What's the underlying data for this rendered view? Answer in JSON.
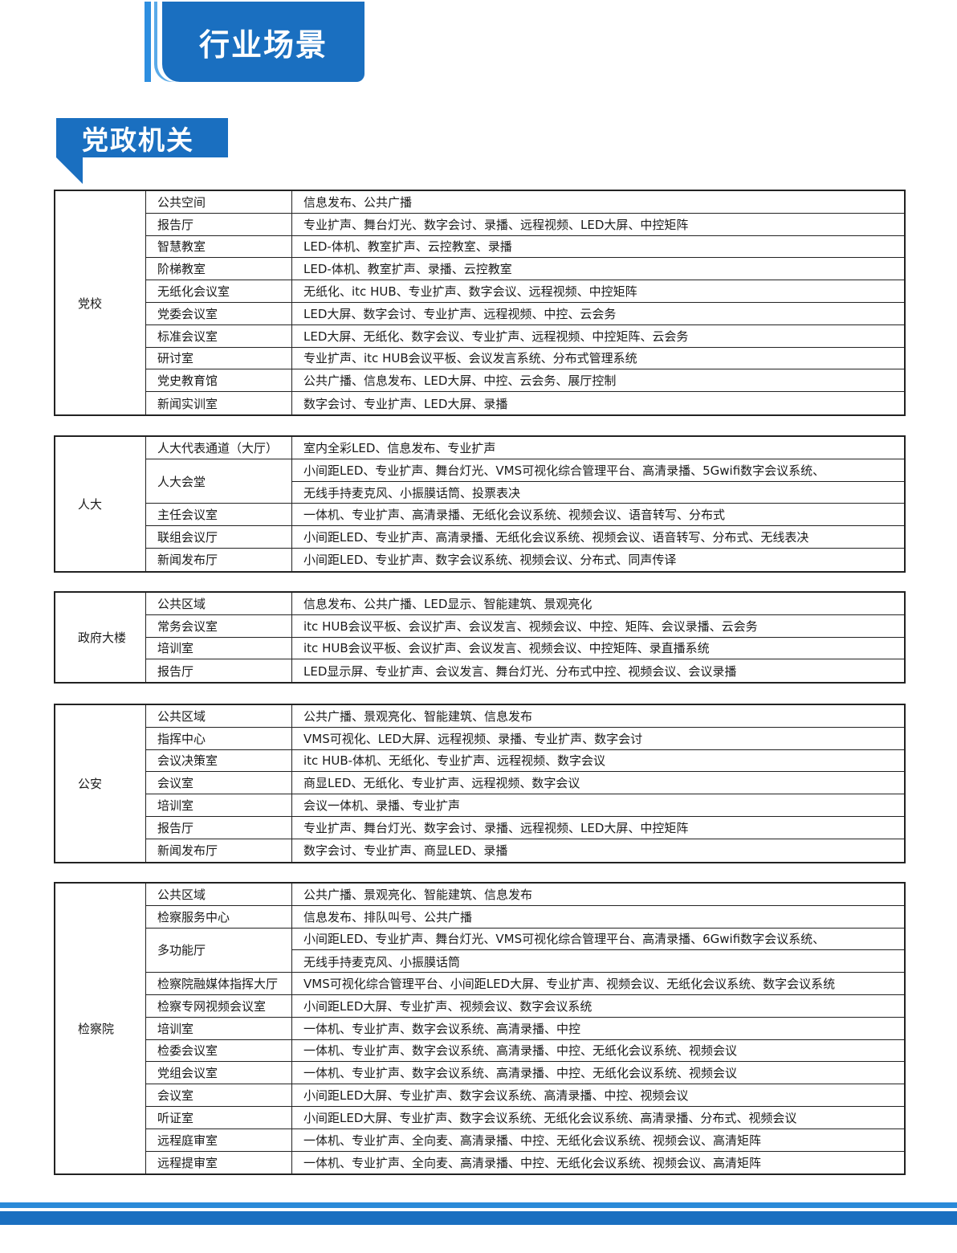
{
  "header": {
    "title": "行业场景"
  },
  "section": {
    "label": "党政机关"
  },
  "tables": [
    {
      "category": "党校",
      "rows": [
        {
          "room": "公共空间",
          "desc": "信息发布、公共广播"
        },
        {
          "room": "报告厅",
          "desc": "专业扩声、舞台灯光、数字会讨、录播、远程视频、LED大屏、中控矩阵"
        },
        {
          "room": "智慧教室",
          "desc": "LED-体机、教室扩声、云控教室、录播"
        },
        {
          "room": "阶梯教室",
          "desc": "LED-体机、教室扩声、录播、云控教室"
        },
        {
          "room": "无纸化会议室",
          "desc": "无纸化、itc HUB、专业扩声、数字会议、远程视频、中控矩阵"
        },
        {
          "room": "党委会议室",
          "desc": "LED大屏、数字会讨、专业扩声、远程视频、中控、云会务"
        },
        {
          "room": "标准会议室",
          "desc": "LED大屏、无纸化、数字会议、专业扩声、远程视频、中控矩阵、云会务"
        },
        {
          "room": "研讨室",
          "desc": "专业扩声、itc HUB会议平板、会议发言系统、分布式管理系统"
        },
        {
          "room": "党史教育馆",
          "desc": "公共广播、信息发布、LED大屏、中控、云会务、展厅控制"
        },
        {
          "room": "新闻实训室",
          "desc": "数字会讨、专业扩声、LED大屏、录播"
        }
      ]
    },
    {
      "category": "人大",
      "rows": [
        {
          "room": "人大代表通道（大厅）",
          "desc": "室内全彩LED、信息发布、专业扩声"
        },
        {
          "room": "人大会堂",
          "desc": "小间距LED、专业扩声、舞台灯光、VMS可视化综合管理平台、高清录播、5Gwifi数字会议系统、",
          "desc2": "无线手持麦克风、小振膜话筒、投票表决"
        },
        {
          "room": "主任会议室",
          "desc": "一体机、专业扩声、高清录播、无纸化会议系统、视频会议、语音转写、分布式"
        },
        {
          "room": "联组会议厅",
          "desc": "小间距LED、专业扩声、高清录播、无纸化会议系统、视频会议、语音转写、分布式、无线表决"
        },
        {
          "room": "新闻发布厅",
          "desc": "小间距LED、专业扩声、数字会议系统、视频会议、分布式、同声传译"
        }
      ]
    },
    {
      "category": "政府大楼",
      "rows": [
        {
          "room": "公共区域",
          "desc": "信息发布、公共广播、LED显示、智能建筑、景观亮化"
        },
        {
          "room": "常务会议室",
          "desc": "itc HUB会议平板、会议扩声、会议发言、视频会议、中控、矩阵、会议录播、云会务"
        },
        {
          "room": "培训室",
          "desc": "itc HUB会议平板、会议扩声、会议发言、视频会议、中控矩阵、录直播系统"
        },
        {
          "room": "报告厅",
          "desc": "LED显示屏、专业扩声、会议发言、舞台灯光、分布式中控、视频会议、会议录播"
        }
      ]
    },
    {
      "category": "公安",
      "rows": [
        {
          "room": "公共区域",
          "desc": "公共广播、景观亮化、智能建筑、信息发布"
        },
        {
          "room": "指挥中心",
          "desc": "VMS可视化、LED大屏、远程视频、录播、专业扩声、数字会讨"
        },
        {
          "room": "会议决策室",
          "desc": "itc HUB-体机、无纸化、专业扩声、远程视频、数字会议"
        },
        {
          "room": "会议室",
          "desc": "商显LED、无纸化、专业扩声、远程视频、数字会议"
        },
        {
          "room": "培训室",
          "desc": "会议一体机、录播、专业扩声"
        },
        {
          "room": "报告厅",
          "desc": "专业扩声、舞台灯光、数字会讨、录播、远程视频、LED大屏、中控矩阵"
        },
        {
          "room": "新闻发布厅",
          "desc": "数字会讨、专业扩声、商显LED、录播"
        }
      ]
    },
    {
      "category": "检察院",
      "rows": [
        {
          "room": "公共区域",
          "desc": "公共广播、景观亮化、智能建筑、信息发布"
        },
        {
          "room": "检察服务中心",
          "desc": "信息发布、排队叫号、公共广播"
        },
        {
          "room": "多功能厅",
          "desc": "小间距LED、专业扩声、舞台灯光、VMS可视化综合管理平台、高清录播、6Gwifi数字会议系统、",
          "desc2": "无线手持麦克风、小振膜话筒"
        },
        {
          "room": "检察院融媒体指挥大厅",
          "desc": "VMS可视化综合管理平台、小间距LED大屏、专业扩声、视频会议、无纸化会议系统、数字会议系统"
        },
        {
          "room": "检察专网视频会议室",
          "desc": "小间距LED大屏、专业扩声、视频会议、数字会议系统"
        },
        {
          "room": "培训室",
          "desc": "一体机、专业扩声、数字会议系统、高清录播、中控"
        },
        {
          "room": "检委会议室",
          "desc": "一体机、专业扩声、数字会议系统、高清录播、中控、无纸化会议系统、视频会议"
        },
        {
          "room": "党组会议室",
          "desc": "一体机、专业扩声、数字会议系统、高清录播、中控、无纸化会议系统、视频会议"
        },
        {
          "room": "会议室",
          "desc": "小间距LED大屏、专业扩声、数字会议系统、高清录播、中控、视频会议"
        },
        {
          "room": "听证室",
          "desc": "小间距LED大屏、专业扩声、数字会议系统、无纸化会议系统、高清录播、分布式、视频会议"
        },
        {
          "room": "远程庭审室",
          "desc": "一体机、专业扩声、全向麦、高清录播、中控、无纸化会议系统、视频会议、高清矩阵"
        },
        {
          "room": "远程提审室",
          "desc": "一体机、专业扩声、全向麦、高清录播、中控、无纸化会议系统、视频会议、高清矩阵"
        }
      ]
    }
  ]
}
